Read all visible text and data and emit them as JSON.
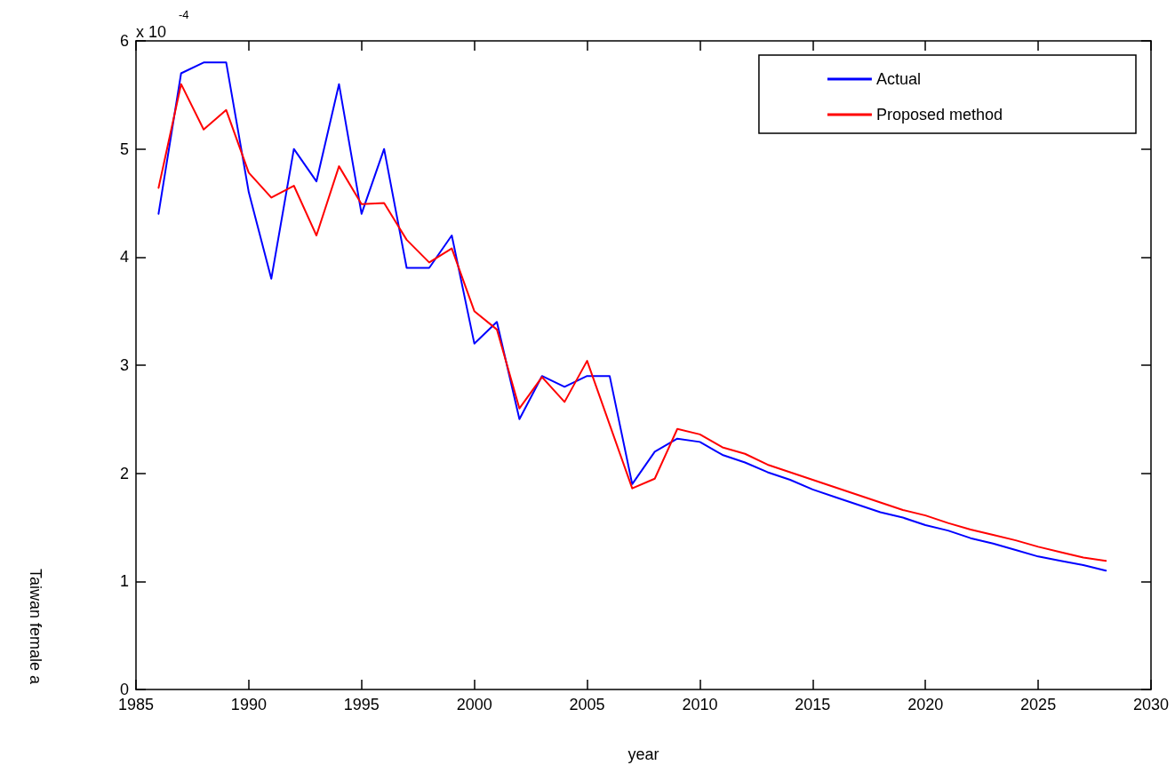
{
  "chart_data": {
    "type": "line",
    "xlabel": "year",
    "ylabel": "Taiwan female a",
    "annotations": [
      "x 10$^{-4}$"
    ],
    "x": [
      1986,
      1987,
      1988,
      1989,
      1990,
      1991,
      1992,
      1993,
      1994,
      1995,
      1996,
      1997,
      1998,
      1999,
      2000,
      2001,
      2002,
      2003,
      2004,
      2005,
      2006,
      2007,
      2008,
      2009,
      2010,
      2011,
      2012,
      2013,
      2014,
      2015,
      2016,
      2017,
      2018,
      2019,
      2020,
      2021,
      2022,
      2023,
      2024,
      2025,
      2026,
      2027,
      2028
    ],
    "series": [
      {
        "name": "Actual",
        "color": "#0000ff",
        "values": [
          4.4,
          5.7,
          5.8,
          5.8,
          4.6,
          3.8,
          5.0,
          4.7,
          5.6,
          4.4,
          5.0,
          3.9,
          3.9,
          4.2,
          3.2,
          3.4,
          2.5,
          2.9,
          2.8,
          2.9,
          2.9,
          1.9,
          2.2,
          2.32,
          2.29,
          2.17,
          2.1,
          2.01,
          1.94,
          1.85,
          1.78,
          1.71,
          1.64,
          1.59,
          1.52,
          1.47,
          1.4,
          1.35,
          1.29,
          1.23,
          1.19,
          1.15,
          1.1
        ]
      },
      {
        "name": "Proposed method",
        "color": "#ff0000",
        "values": [
          4.64,
          5.6,
          5.18,
          5.36,
          4.78,
          4.55,
          4.66,
          4.2,
          4.84,
          4.49,
          4.5,
          4.16,
          3.95,
          4.08,
          3.5,
          3.33,
          2.6,
          2.89,
          2.66,
          3.04,
          2.45,
          1.86,
          1.95,
          2.41,
          2.36,
          2.24,
          2.18,
          2.08,
          2.01,
          1.94,
          1.87,
          1.8,
          1.73,
          1.66,
          1.61,
          1.54,
          1.48,
          1.43,
          1.38,
          1.32,
          1.27,
          1.22,
          1.19
        ]
      }
    ],
    "xlim": [
      1985,
      2030
    ],
    "xticks": [
      1985,
      1990,
      1995,
      2000,
      2005,
      2010,
      2015,
      2020,
      2025,
      2030
    ],
    "ylim": [
      0,
      6
    ],
    "yticks": [
      0,
      1,
      2,
      3,
      4,
      5,
      6
    ],
    "grid": false,
    "legend": "top right",
    "marker": "none",
    "line_style": "solid"
  }
}
